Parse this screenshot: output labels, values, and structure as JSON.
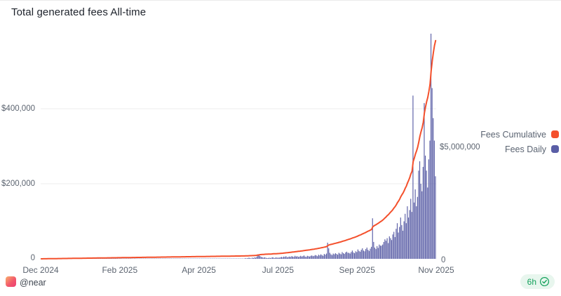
{
  "chart": {
    "title": "Total generated fees All-time",
    "legend": [
      {
        "label": "Fees Cumulative",
        "color": "#f4502c"
      },
      {
        "label": "Fees Daily",
        "color": "#5a5ea6"
      }
    ],
    "left_axis_ticks": [
      "$400,000",
      "$200,000",
      "0"
    ],
    "right_axis_ticks": [
      "$5,000,000",
      "0"
    ],
    "x_labels": [
      "Dec 2024",
      "Feb 2025",
      "Apr 2025",
      "Jul 2025",
      "Sep 2025",
      "Nov 2025"
    ],
    "grid_color": "#ececee"
  },
  "chart_data": {
    "type": "bar",
    "combo": true,
    "title": "Total generated fees All-time",
    "x_start": "Dec 2024",
    "x_end": "Nov 2025",
    "x_tick_labels": [
      "Dec 2024",
      "Feb 2025",
      "Apr 2025",
      "Jul 2025",
      "Sep 2025",
      "Nov 2025"
    ],
    "series": [
      {
        "name": "Fees Daily",
        "type": "bar",
        "axis": "left",
        "color": "#5a5ea6"
      },
      {
        "name": "Fees Cumulative",
        "type": "line",
        "axis": "right",
        "color": "#f4502c",
        "derivation": "running_sum_of_daily",
        "final_value_usd": 9780000
      }
    ],
    "left_axis": {
      "series": "Fees Daily",
      "ticks_usd": [
        0,
        200000,
        400000
      ],
      "max_usd": 610000,
      "gridlines": true
    },
    "right_axis": {
      "series": "Fees Cumulative",
      "ticks_usd": [
        0,
        5000000
      ],
      "max_usd": 10200000,
      "gridlines": false
    },
    "daily_lead_in": {
      "days": 182,
      "start": "Dec 2024",
      "approx_daily_usd": 715
    },
    "daily_from_jun_2025_usd_thousands": [
      2,
      1,
      2,
      3,
      2,
      1,
      3,
      2,
      4,
      3,
      6,
      12,
      9,
      7,
      5,
      4,
      3,
      4,
      3,
      2,
      2,
      3,
      2,
      3,
      4,
      3,
      2,
      4,
      3,
      3,
      3,
      4,
      5,
      4,
      6,
      5,
      7,
      4,
      5,
      6,
      5,
      7,
      6,
      5,
      8,
      6,
      7,
      5,
      6,
      8,
      6,
      7,
      9,
      6,
      5,
      8,
      7,
      6,
      8,
      9,
      7,
      8,
      10,
      9,
      7,
      11,
      9,
      12,
      10,
      8,
      13,
      11,
      14,
      43,
      28,
      16,
      12,
      10,
      14,
      12,
      15,
      13,
      11,
      16,
      14,
      12,
      18,
      15,
      13,
      17,
      19,
      16,
      16,
      14,
      18,
      22,
      17,
      15,
      20,
      18,
      25,
      21,
      19,
      24,
      28,
      22,
      20,
      26,
      30,
      24,
      21,
      27,
      32,
      108,
      45,
      30,
      26,
      34,
      29,
      38,
      35,
      35,
      38,
      45,
      52,
      48,
      55,
      42,
      60,
      55,
      50,
      65,
      72,
      58,
      80,
      95,
      70,
      85,
      110,
      90,
      75,
      100,
      120,
      95,
      140,
      110,
      130,
      160,
      125,
      435,
      150,
      185,
      140,
      165,
      235,
      260,
      200,
      180,
      245,
      415,
      275,
      235,
      190,
      265,
      315,
      600,
      455,
      375,
      315,
      220
    ]
  },
  "footer": {
    "author_handle": "@near",
    "refresh_interval": "6h"
  }
}
